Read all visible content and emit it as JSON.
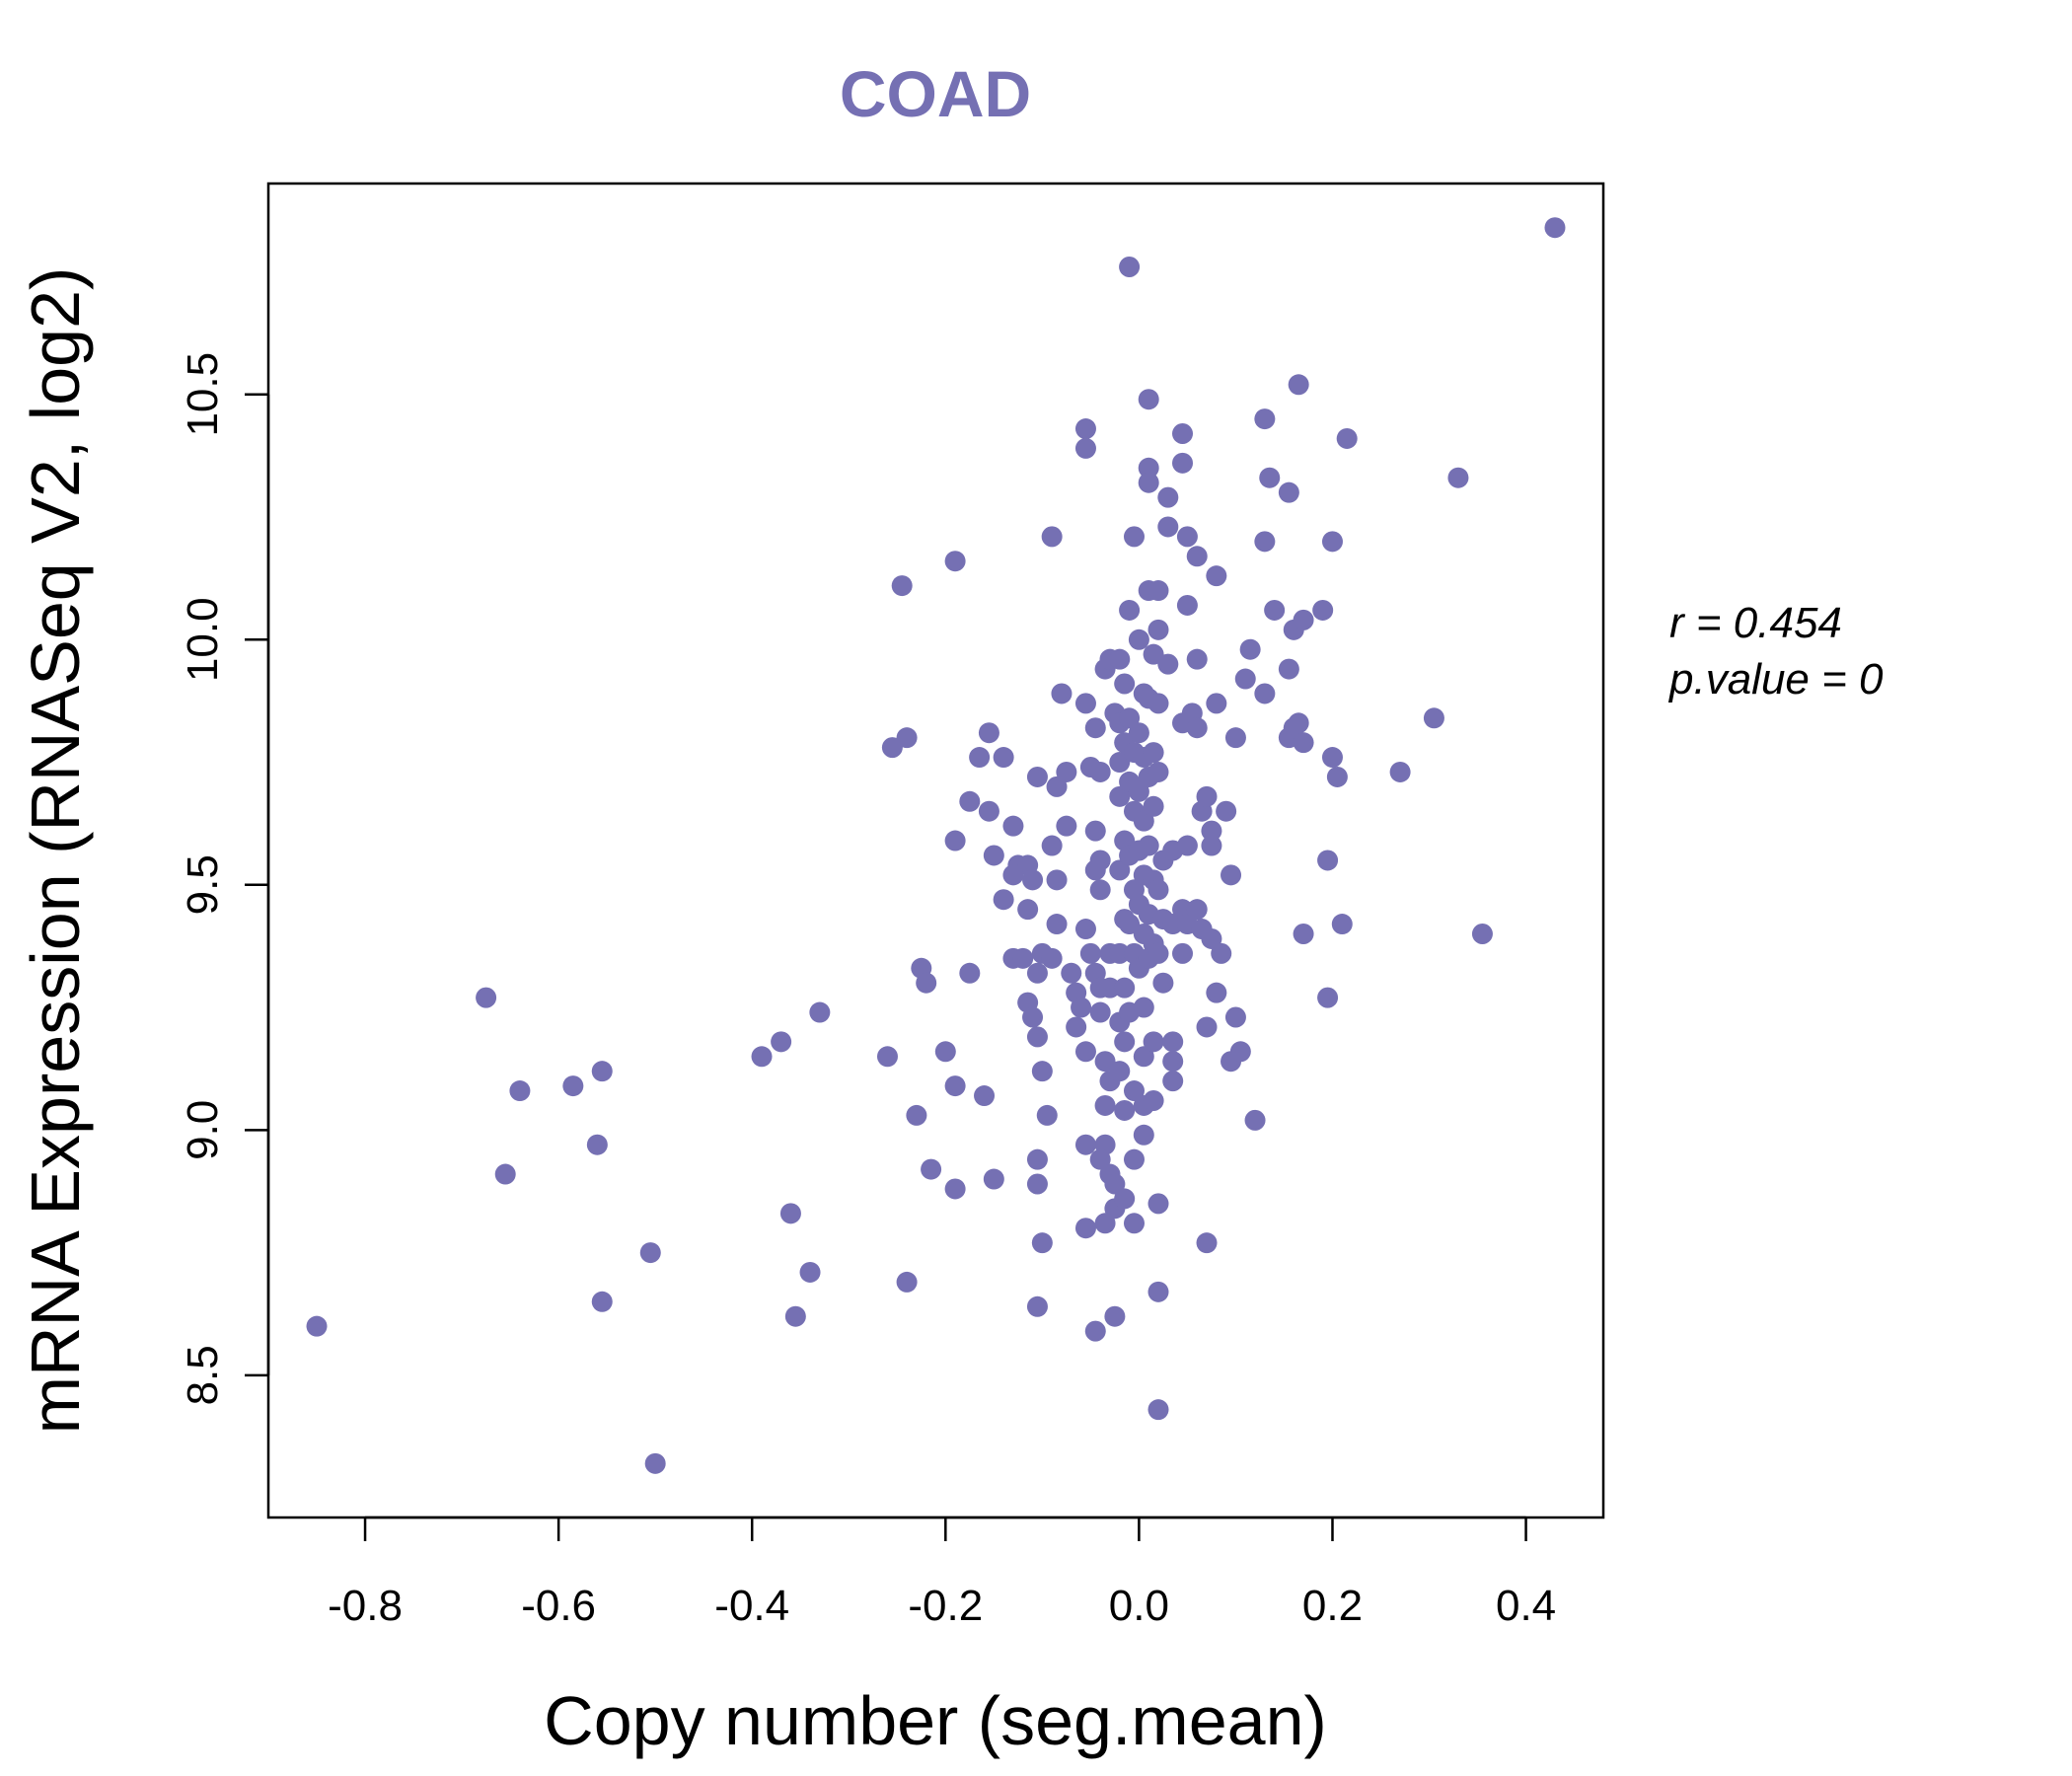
{
  "chart_data": {
    "type": "scatter",
    "title": "COAD",
    "xlabel": "Copy number (seg.mean)",
    "ylabel": "mRNA Expression (RNASeq V2, log2)",
    "xlim": [
      -0.9,
      0.48
    ],
    "ylim": [
      8.21,
      10.93
    ],
    "xticks": [
      -0.8,
      -0.6,
      -0.4,
      -0.2,
      0.0,
      0.2,
      0.4
    ],
    "xtick_labels": [
      "-0.8",
      "-0.6",
      "-0.4",
      "-0.2",
      "0.0",
      "0.2",
      "0.4"
    ],
    "yticks": [
      8.5,
      9.0,
      9.5,
      10.0,
      10.5
    ],
    "ytick_labels": [
      "8.5",
      "9.0",
      "9.5",
      "10.0",
      "10.5"
    ],
    "annotation": {
      "r_label": "r = 0.454",
      "p_label": "p.value = 0"
    },
    "point_color": "#7570b3",
    "points": [
      [
        -0.85,
        8.6
      ],
      [
        -0.5,
        8.32
      ],
      [
        -0.675,
        9.27
      ],
      [
        -0.64,
        9.08
      ],
      [
        -0.655,
        8.91
      ],
      [
        -0.585,
        9.09
      ],
      [
        -0.555,
        9.12
      ],
      [
        -0.56,
        8.97
      ],
      [
        -0.555,
        8.65
      ],
      [
        -0.505,
        8.75
      ],
      [
        -0.39,
        9.15
      ],
      [
        -0.37,
        9.18
      ],
      [
        -0.33,
        9.24
      ],
      [
        -0.36,
        8.83
      ],
      [
        -0.34,
        8.71
      ],
      [
        -0.355,
        8.62
      ],
      [
        -0.26,
        9.15
      ],
      [
        -0.245,
        10.11
      ],
      [
        -0.24,
        9.8
      ],
      [
        -0.255,
        9.78
      ],
      [
        -0.19,
        10.16
      ],
      [
        -0.225,
        9.33
      ],
      [
        -0.22,
        9.3
      ],
      [
        -0.23,
        9.03
      ],
      [
        -0.2,
        9.16
      ],
      [
        -0.19,
        9.09
      ],
      [
        -0.215,
        8.92
      ],
      [
        -0.19,
        8.88
      ],
      [
        -0.24,
        8.69
      ],
      [
        -0.175,
        9.67
      ],
      [
        -0.165,
        9.76
      ],
      [
        -0.155,
        9.81
      ],
      [
        -0.14,
        9.76
      ],
      [
        -0.155,
        9.65
      ],
      [
        -0.19,
        9.59
      ],
      [
        -0.15,
        9.56
      ],
      [
        -0.13,
        9.62
      ],
      [
        -0.125,
        9.54
      ],
      [
        -0.115,
        9.54
      ],
      [
        -0.13,
        9.52
      ],
      [
        -0.14,
        9.47
      ],
      [
        -0.11,
        9.51
      ],
      [
        -0.115,
        9.45
      ],
      [
        -0.175,
        9.32
      ],
      [
        -0.13,
        9.35
      ],
      [
        -0.12,
        9.35
      ],
      [
        -0.1,
        9.36
      ],
      [
        -0.105,
        9.32
      ],
      [
        -0.115,
        9.26
      ],
      [
        -0.11,
        9.23
      ],
      [
        -0.16,
        9.07
      ],
      [
        -0.15,
        8.9
      ],
      [
        -0.105,
        9.19
      ],
      [
        -0.1,
        9.12
      ],
      [
        -0.095,
        9.03
      ],
      [
        -0.105,
        8.94
      ],
      [
        -0.105,
        8.89
      ],
      [
        -0.1,
        8.77
      ],
      [
        -0.105,
        8.64
      ],
      [
        -0.09,
        10.21
      ],
      [
        -0.08,
        9.89
      ],
      [
        -0.105,
        9.72
      ],
      [
        -0.085,
        9.7
      ],
      [
        -0.075,
        9.73
      ],
      [
        -0.075,
        9.62
      ],
      [
        -0.09,
        9.58
      ],
      [
        -0.085,
        9.51
      ],
      [
        -0.085,
        9.42
      ],
      [
        -0.09,
        9.35
      ],
      [
        -0.07,
        9.32
      ],
      [
        -0.065,
        9.28
      ],
      [
        -0.06,
        9.25
      ],
      [
        -0.065,
        9.21
      ],
      [
        -0.055,
        9.16
      ],
      [
        -0.055,
        8.97
      ],
      [
        -0.055,
        8.8
      ],
      [
        -0.045,
        8.59
      ],
      [
        -0.055,
        10.43
      ],
      [
        -0.055,
        10.39
      ],
      [
        -0.055,
        9.87
      ],
      [
        -0.05,
        9.74
      ],
      [
        -0.045,
        9.61
      ],
      [
        -0.04,
        9.55
      ],
      [
        -0.045,
        9.53
      ],
      [
        -0.04,
        9.49
      ],
      [
        -0.055,
        9.41
      ],
      [
        -0.05,
        9.36
      ],
      [
        -0.045,
        9.32
      ],
      [
        -0.04,
        9.29
      ],
      [
        -0.04,
        9.24
      ],
      [
        -0.035,
        9.94
      ],
      [
        -0.03,
        9.96
      ],
      [
        -0.025,
        9.85
      ],
      [
        -0.045,
        9.82
      ],
      [
        -0.04,
        9.73
      ],
      [
        -0.03,
        9.36
      ],
      [
        -0.03,
        9.29
      ],
      [
        -0.035,
        9.14
      ],
      [
        -0.03,
        9.1
      ],
      [
        -0.035,
        9.05
      ],
      [
        -0.035,
        8.97
      ],
      [
        -0.04,
        8.94
      ],
      [
        -0.03,
        8.91
      ],
      [
        -0.025,
        8.89
      ],
      [
        -0.025,
        8.84
      ],
      [
        -0.035,
        8.81
      ],
      [
        -0.025,
        8.62
      ],
      [
        -0.02,
        9.96
      ],
      [
        -0.015,
        9.91
      ],
      [
        -0.02,
        9.83
      ],
      [
        -0.015,
        9.79
      ],
      [
        -0.02,
        9.75
      ],
      [
        -0.02,
        9.68
      ],
      [
        -0.015,
        9.59
      ],
      [
        -0.02,
        9.53
      ],
      [
        -0.015,
        9.43
      ],
      [
        -0.02,
        9.36
      ],
      [
        -0.015,
        9.29
      ],
      [
        -0.02,
        9.22
      ],
      [
        -0.015,
        9.18
      ],
      [
        -0.02,
        9.12
      ],
      [
        -0.015,
        9.04
      ],
      [
        -0.015,
        8.86
      ],
      [
        -0.01,
        10.76
      ],
      [
        -0.01,
        10.06
      ],
      [
        -0.005,
        10.21
      ],
      [
        -0.01,
        9.84
      ],
      [
        -0.005,
        9.77
      ],
      [
        -0.01,
        9.71
      ],
      [
        -0.005,
        9.65
      ],
      [
        -0.01,
        9.56
      ],
      [
        -0.005,
        9.49
      ],
      [
        -0.01,
        9.42
      ],
      [
        -0.005,
        9.36
      ],
      [
        -0.01,
        9.24
      ],
      [
        -0.005,
        9.08
      ],
      [
        -0.005,
        8.94
      ],
      [
        -0.005,
        8.81
      ],
      [
        0.0,
        10.0
      ],
      [
        0.005,
        9.89
      ],
      [
        0.0,
        9.81
      ],
      [
        0.005,
        9.76
      ],
      [
        0.0,
        9.69
      ],
      [
        0.005,
        9.63
      ],
      [
        0.0,
        9.57
      ],
      [
        0.005,
        9.52
      ],
      [
        0.0,
        9.46
      ],
      [
        0.005,
        9.4
      ],
      [
        0.0,
        9.33
      ],
      [
        0.005,
        9.25
      ],
      [
        0.005,
        9.15
      ],
      [
        0.005,
        9.05
      ],
      [
        0.005,
        8.99
      ],
      [
        0.01,
        10.49
      ],
      [
        0.01,
        10.35
      ],
      [
        0.01,
        10.32
      ],
      [
        0.01,
        10.1
      ],
      [
        0.015,
        9.97
      ],
      [
        0.01,
        9.88
      ],
      [
        0.015,
        9.77
      ],
      [
        0.01,
        9.72
      ],
      [
        0.015,
        9.66
      ],
      [
        0.01,
        9.58
      ],
      [
        0.015,
        9.51
      ],
      [
        0.01,
        9.44
      ],
      [
        0.015,
        9.38
      ],
      [
        0.01,
        9.35
      ],
      [
        0.015,
        9.18
      ],
      [
        0.015,
        9.06
      ],
      [
        0.02,
        10.1
      ],
      [
        0.02,
        10.02
      ],
      [
        0.02,
        9.87
      ],
      [
        0.02,
        9.73
      ],
      [
        0.025,
        9.55
      ],
      [
        0.02,
        9.49
      ],
      [
        0.025,
        9.43
      ],
      [
        0.02,
        9.36
      ],
      [
        0.025,
        9.3
      ],
      [
        0.02,
        8.85
      ],
      [
        0.02,
        8.67
      ],
      [
        0.02,
        8.43
      ],
      [
        0.03,
        10.29
      ],
      [
        0.03,
        10.23
      ],
      [
        0.03,
        9.95
      ],
      [
        0.035,
        9.57
      ],
      [
        0.035,
        9.42
      ],
      [
        0.035,
        9.18
      ],
      [
        0.035,
        9.14
      ],
      [
        0.035,
        9.1
      ],
      [
        0.045,
        10.42
      ],
      [
        0.045,
        10.36
      ],
      [
        0.05,
        10.21
      ],
      [
        0.05,
        10.07
      ],
      [
        0.045,
        9.83
      ],
      [
        0.055,
        9.85
      ],
      [
        0.05,
        9.58
      ],
      [
        0.045,
        9.45
      ],
      [
        0.05,
        9.42
      ],
      [
        0.045,
        9.36
      ],
      [
        0.06,
        10.17
      ],
      [
        0.06,
        9.96
      ],
      [
        0.06,
        9.82
      ],
      [
        0.065,
        9.65
      ],
      [
        0.06,
        9.45
      ],
      [
        0.065,
        9.41
      ],
      [
        0.07,
        9.21
      ],
      [
        0.07,
        8.77
      ],
      [
        0.075,
        9.58
      ],
      [
        0.075,
        9.61
      ],
      [
        0.07,
        9.68
      ],
      [
        0.08,
        10.13
      ],
      [
        0.08,
        9.87
      ],
      [
        0.075,
        9.39
      ],
      [
        0.085,
        9.36
      ],
      [
        0.08,
        9.28
      ],
      [
        0.09,
        9.65
      ],
      [
        0.095,
        9.52
      ],
      [
        0.1,
        9.8
      ],
      [
        0.1,
        9.23
      ],
      [
        0.095,
        9.14
      ],
      [
        0.105,
        9.16
      ],
      [
        0.11,
        9.92
      ],
      [
        0.115,
        9.98
      ],
      [
        0.12,
        9.02
      ],
      [
        0.13,
        10.45
      ],
      [
        0.13,
        10.2
      ],
      [
        0.13,
        9.89
      ],
      [
        0.135,
        10.33
      ],
      [
        0.14,
        10.06
      ],
      [
        0.155,
        10.3
      ],
      [
        0.155,
        9.94
      ],
      [
        0.155,
        9.8
      ],
      [
        0.16,
        10.02
      ],
      [
        0.16,
        9.82
      ],
      [
        0.165,
        10.52
      ],
      [
        0.165,
        9.83
      ],
      [
        0.17,
        10.04
      ],
      [
        0.17,
        9.79
      ],
      [
        0.17,
        9.4
      ],
      [
        0.19,
        10.06
      ],
      [
        0.195,
        9.55
      ],
      [
        0.195,
        9.27
      ],
      [
        0.2,
        10.2
      ],
      [
        0.2,
        9.76
      ],
      [
        0.205,
        9.72
      ],
      [
        0.21,
        9.42
      ],
      [
        0.215,
        10.41
      ],
      [
        0.27,
        9.73
      ],
      [
        0.305,
        9.84
      ],
      [
        0.33,
        10.33
      ],
      [
        0.355,
        9.4
      ],
      [
        0.43,
        10.84
      ]
    ]
  }
}
